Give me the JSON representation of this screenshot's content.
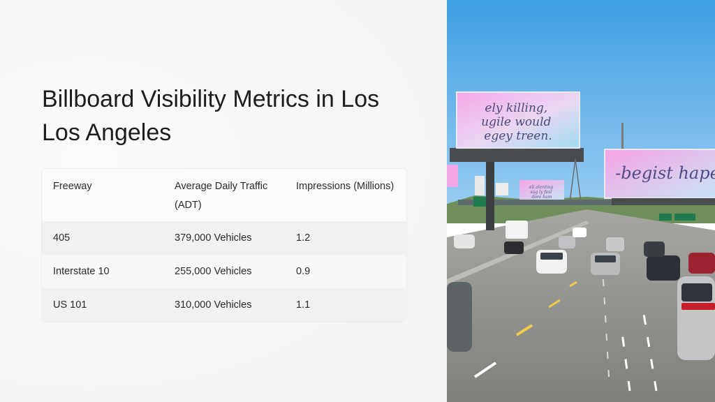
{
  "title": "Billboard Visibility Metrics in Los Los Angeles",
  "table": {
    "headers": [
      "Freeway",
      "Average Daily Traffic (ADT)",
      "Impressions (Millions)"
    ],
    "rows": [
      [
        "405",
        "379,000 Vehicles",
        "1.2"
      ],
      [
        "Interstate 10",
        "255,000 Vehicles",
        "0.9"
      ],
      [
        "US 101",
        "310,000 Vehicles",
        "1.1"
      ]
    ]
  },
  "photo": {
    "billboard_left_text": "ely killing, ugile would egey treen.",
    "billboard_right_text": "-begist hape",
    "billboard_small_text": "eli alenting sug ly fest dore hum",
    "colors": {
      "sky": "#4aa6e6",
      "road": "#8d8d8b",
      "billboard_pink": "#f3a6e6",
      "billboard_blue": "#a9dcef"
    }
  }
}
